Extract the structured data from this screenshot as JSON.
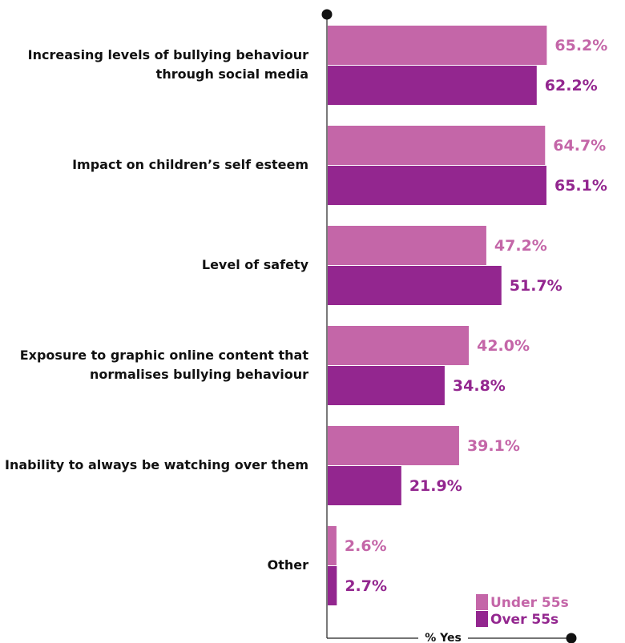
{
  "chart_data": {
    "type": "bar",
    "orientation": "horizontal",
    "categories": [
      "Increasing levels of bullying behaviour through social media",
      "Impact on children’s self esteem",
      "Level of safety",
      "Exposure to graphic online content that normalises bullying behaviour",
      "Inability to always be watching over them",
      "Other"
    ],
    "series": [
      {
        "name": "Under 55s",
        "color": "#c466a8",
        "values": [
          65.2,
          64.7,
          47.2,
          42.0,
          39.1,
          2.6
        ],
        "value_labels": [
          "65.2%",
          "64.7%",
          "47.2%",
          "42.0%",
          "39.1%",
          "2.6%"
        ]
      },
      {
        "name": "Over 55s",
        "color": "#93268f",
        "values": [
          62.2,
          65.1,
          51.7,
          34.8,
          21.9,
          2.7
        ],
        "value_labels": [
          "62.2%",
          "65.1%",
          "51.7%",
          "34.8%",
          "21.9%",
          "2.7%"
        ]
      }
    ],
    "xlabel": "% Yes",
    "xlim": [
      0,
      72.5
    ],
    "legend": "bottom-right"
  }
}
